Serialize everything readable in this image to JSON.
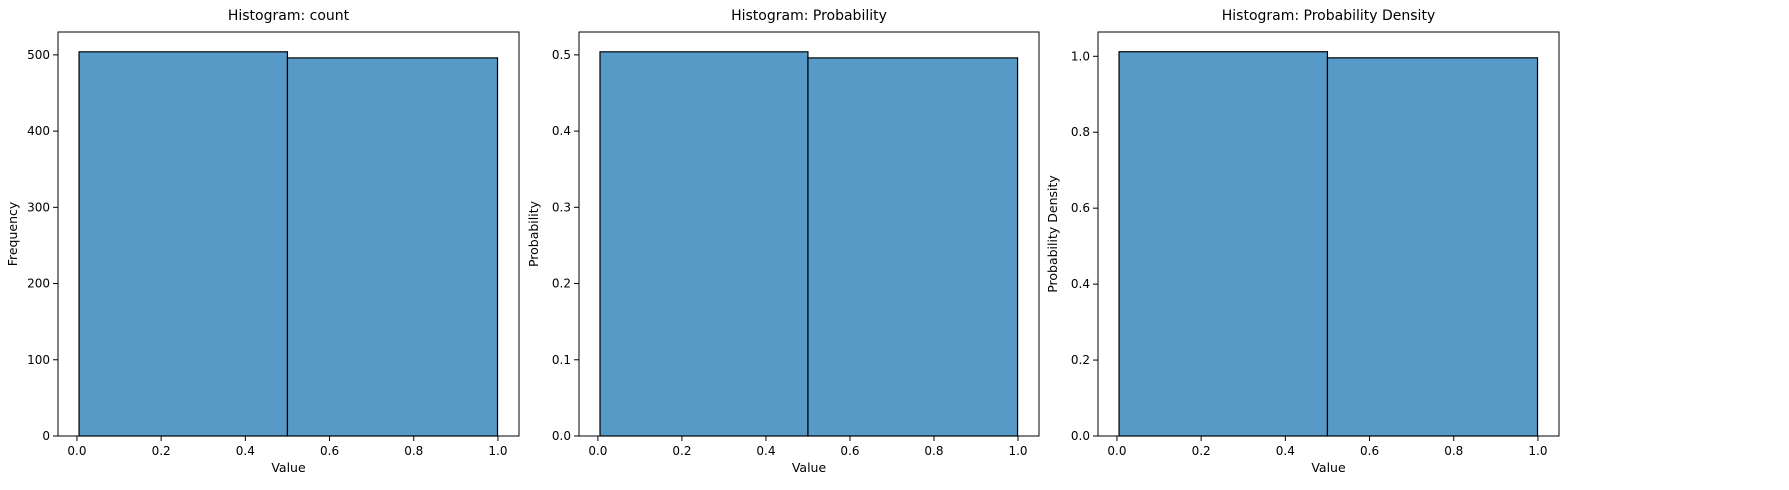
{
  "chart_data": [
    {
      "type": "bar",
      "title": "Histogram: count",
      "xlabel": "Value",
      "ylabel": "Frequency",
      "bins": [
        [
          0.005,
          0.5
        ],
        [
          0.5,
          0.999
        ]
      ],
      "values": [
        504,
        496
      ],
      "xlim": [
        -0.045,
        1.05
      ],
      "ylim": [
        0,
        530
      ],
      "xticks": [
        0.0,
        0.2,
        0.4,
        0.6,
        0.8,
        1.0
      ],
      "xtick_labels": [
        "0.0",
        "0.2",
        "0.4",
        "0.6",
        "0.8",
        "1.0"
      ],
      "yticks": [
        0,
        100,
        200,
        300,
        400,
        500
      ],
      "ytick_labels": [
        "0",
        "100",
        "200",
        "300",
        "400",
        "500"
      ],
      "grid": false,
      "bar_color": "#5799c7",
      "edge_color": "#000000"
    },
    {
      "type": "bar",
      "title": "Histogram: Probability",
      "xlabel": "Value",
      "ylabel": "Probability",
      "bins": [
        [
          0.005,
          0.5
        ],
        [
          0.5,
          0.999
        ]
      ],
      "values": [
        0.504,
        0.496
      ],
      "xlim": [
        -0.045,
        1.05
      ],
      "ylim": [
        0,
        0.53
      ],
      "xticks": [
        0.0,
        0.2,
        0.4,
        0.6,
        0.8,
        1.0
      ],
      "xtick_labels": [
        "0.0",
        "0.2",
        "0.4",
        "0.6",
        "0.8",
        "1.0"
      ],
      "yticks": [
        0.0,
        0.1,
        0.2,
        0.3,
        0.4,
        0.5
      ],
      "ytick_labels": [
        "0.0",
        "0.1",
        "0.2",
        "0.3",
        "0.4",
        "0.5"
      ],
      "grid": false,
      "bar_color": "#5799c7",
      "edge_color": "#000000"
    },
    {
      "type": "bar",
      "title": "Histogram: Probability Density",
      "xlabel": "Value",
      "ylabel": "Probability Density",
      "bins": [
        [
          0.005,
          0.5
        ],
        [
          0.5,
          0.999
        ]
      ],
      "values": [
        1.012,
        0.996
      ],
      "xlim": [
        -0.045,
        1.05
      ],
      "ylim": [
        0,
        1.064
      ],
      "xticks": [
        0.0,
        0.2,
        0.4,
        0.6,
        0.8,
        1.0
      ],
      "xtick_labels": [
        "0.0",
        "0.2",
        "0.4",
        "0.6",
        "0.8",
        "1.0"
      ],
      "yticks": [
        0.0,
        0.2,
        0.4,
        0.6,
        0.8,
        1.0
      ],
      "ytick_labels": [
        "0.0",
        "0.2",
        "0.4",
        "0.6",
        "0.8",
        "1.0"
      ],
      "grid": false,
      "bar_color": "#5799c7",
      "edge_color": "#000000"
    }
  ]
}
